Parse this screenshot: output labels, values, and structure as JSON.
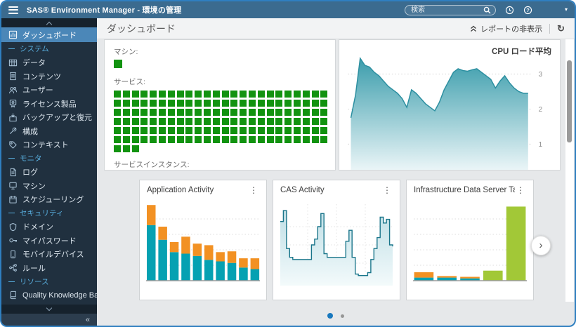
{
  "topbar": {
    "title": "SAS® Environment Manager - 環境の管理",
    "search_placeholder": "検索",
    "bg_color": "#3b6b8f"
  },
  "icons": {
    "menu-icon": "hamburger",
    "search-icon": "magnifier",
    "history-icon": "clock-circle",
    "help-icon": "question-circle",
    "caret-down-icon": "▾",
    "collapse-up-icon": "double-chevron-up",
    "refresh-icon": "↻",
    "card-menu-icon": "⋮",
    "collapse-sidebar-icon": "«",
    "carousel-next-icon": "›"
  },
  "sidebar": {
    "items": [
      {
        "label": "ダッシュボード",
        "icon": "dashboard-icon",
        "selected": true
      },
      {
        "label": "システム",
        "section": true
      },
      {
        "label": "データ",
        "icon": "data-icon"
      },
      {
        "label": "コンテンツ",
        "icon": "content-icon"
      },
      {
        "label": "ユーザー",
        "icon": "users-icon"
      },
      {
        "label": "ライセンス製品",
        "icon": "licensed-products-icon"
      },
      {
        "label": "バックアップと復元",
        "icon": "backup-restore-icon"
      },
      {
        "label": "構成",
        "icon": "configuration-icon"
      },
      {
        "label": "コンテキスト",
        "icon": "contexts-icon"
      },
      {
        "label": "モニタ",
        "section": true
      },
      {
        "label": "ログ",
        "icon": "logs-icon"
      },
      {
        "label": "マシン",
        "icon": "machines-icon"
      },
      {
        "label": "スケジューリング",
        "icon": "scheduling-icon"
      },
      {
        "label": "セキュリティ",
        "section": true
      },
      {
        "label": "ドメイン",
        "icon": "domains-icon"
      },
      {
        "label": "マイパスワード",
        "icon": "my-password-icon"
      },
      {
        "label": "モバイルデバイス",
        "icon": "mobile-devices-icon"
      },
      {
        "label": "ルール",
        "icon": "rules-icon"
      },
      {
        "label": "リソース",
        "section": true
      },
      {
        "label": "Quality Knowledge Bases",
        "icon": "qkb-icon"
      }
    ]
  },
  "page_header": {
    "title": "ダッシュボード",
    "hide_reports_label": "レポートの非表示"
  },
  "status_panel": {
    "machine_label": "マシン:",
    "machine_count": 1,
    "services_label": "サービス:",
    "services_count": 147,
    "services_columns": 24,
    "instances_label": "サービスインスタンス:",
    "status_ok_color": "#129310"
  },
  "carousel": {
    "dots_total": 2,
    "active_dot": 1
  },
  "chart_data": [
    {
      "id": "cpu_load_average",
      "type": "area",
      "title": "CPU ロード平均",
      "yticks": [
        1,
        2,
        3
      ],
      "ylim": [
        0,
        3.6
      ],
      "grid": "horizontal-dotted",
      "legend": "none",
      "line_color": "#2c8fa0",
      "fill_top_color": "#3b9dac",
      "fill_bottom_color": "#eaf5f7",
      "values": [
        1.75,
        2.4,
        3.45,
        3.25,
        3.2,
        3.05,
        2.95,
        2.8,
        2.65,
        2.55,
        2.45,
        2.3,
        2.05,
        2.55,
        2.45,
        2.3,
        2.15,
        2.05,
        1.95,
        2.2,
        2.55,
        2.8,
        3.05,
        3.15,
        3.1,
        3.08,
        3.12,
        3.15,
        3.05,
        2.95,
        2.85,
        2.6,
        2.8,
        2.95,
        2.75,
        2.6,
        2.5,
        2.45,
        2.45
      ]
    },
    {
      "id": "application_activity",
      "type": "bar",
      "stacked": true,
      "title": "Application Activity",
      "ylim": [
        0,
        100
      ],
      "grid": "horizontal-dotted",
      "categories": [
        "1",
        "2",
        "3",
        "4",
        "5",
        "6",
        "7",
        "8",
        "9",
        "10"
      ],
      "series": [
        {
          "name": "segment-bottom",
          "color": "#05a1b2",
          "values": [
            72,
            53,
            37,
            35,
            32,
            27,
            25,
            23,
            17,
            15
          ]
        },
        {
          "name": "segment-top",
          "color": "#f29123",
          "values": [
            26,
            17,
            13,
            22,
            16,
            19,
            12,
            15,
            12,
            14
          ]
        }
      ]
    },
    {
      "id": "cas_activity",
      "type": "step-area",
      "title": "CAS Activity",
      "ylim": [
        0,
        100
      ],
      "grid": "both-dotted",
      "line_color": "#19758a",
      "fill_top_color": "#bfdfe6",
      "fill_bottom_color": "#f3fafb",
      "values": [
        82,
        97,
        45,
        33,
        30,
        30,
        30,
        30,
        30,
        30,
        50,
        58,
        75,
        93,
        38,
        33,
        33,
        33,
        33,
        33,
        33,
        55,
        70,
        33,
        10,
        8,
        8,
        8,
        12,
        30,
        45,
        60,
        88,
        80,
        85,
        50,
        48
      ]
    },
    {
      "id": "infrastructure_data_server_tables",
      "type": "bar",
      "stacked": true,
      "title": "Infrastructure Data Server Tables",
      "ylim": [
        0,
        100
      ],
      "grid": "horizontal-dotted",
      "categories": [
        "1",
        "2",
        "3",
        "4",
        "5"
      ],
      "series": [
        {
          "name": "segment-teal",
          "color": "#05a1b2",
          "values": [
            4,
            4,
            3,
            0,
            0
          ]
        },
        {
          "name": "segment-orange",
          "color": "#f29123",
          "values": [
            7,
            2,
            2,
            0,
            0
          ]
        },
        {
          "name": "segment-green",
          "color": "#a2c837",
          "values": [
            0,
            0,
            0,
            13,
            96
          ]
        }
      ]
    }
  ]
}
